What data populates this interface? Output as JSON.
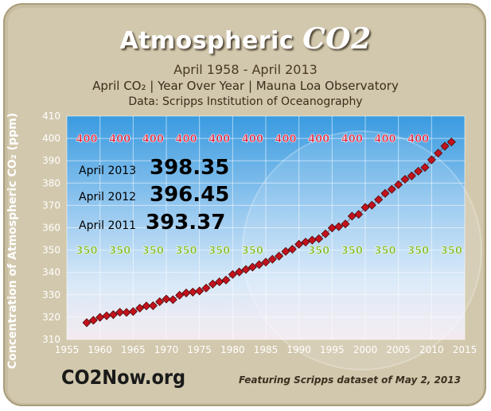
{
  "title": {
    "main": "Atmospheric",
    "co2": "CO2"
  },
  "subtitle": "April 1958 - April 2013",
  "line3": "April CO₂  |  Year Over Year  |  Mauna Loa Observatory",
  "line4": "Data:  Scripps Institution of Oceanography",
  "ylabel": "Concentration of  Atmospheric CO₂  (ppm)",
  "logo": "CO2Now.org",
  "featuring": "Featuring Scripps dataset of May 2, 2013",
  "stats": [
    {
      "label": "April 2013",
      "value": "398.35"
    },
    {
      "label": "April 2012",
      "value": "396.45"
    },
    {
      "label": "April 2011",
      "value": "393.37"
    }
  ],
  "chart_data": {
    "type": "scatter",
    "title": "Atmospheric CO2",
    "xlabel": "",
    "ylabel": "Concentration of  Atmospheric CO2  (ppm)",
    "xlim": [
      1955,
      2015
    ],
    "ylim": [
      310,
      410
    ],
    "xticks": [
      1955,
      1960,
      1965,
      1970,
      1975,
      1980,
      1985,
      1990,
      1995,
      2000,
      2005,
      2010,
      2015
    ],
    "yticks": [
      310,
      320,
      330,
      340,
      350,
      360,
      370,
      380,
      390,
      400,
      410
    ],
    "grid": true,
    "reference_lines": [
      {
        "label": "400",
        "y": 400,
        "color": "#e0203a"
      },
      {
        "label": "350",
        "y": 350,
        "color": "#7ab81e"
      }
    ],
    "series": [
      {
        "color": "#c4121c",
        "x": [
          1958,
          1959,
          1960,
          1961,
          1962,
          1963,
          1964,
          1965,
          1966,
          1967,
          1968,
          1969,
          1970,
          1971,
          1972,
          1973,
          1974,
          1975,
          1976,
          1977,
          1978,
          1979,
          1980,
          1981,
          1982,
          1983,
          1984,
          1985,
          1986,
          1987,
          1988,
          1989,
          1990,
          1991,
          1992,
          1993,
          1994,
          1995,
          1996,
          1997,
          1998,
          1999,
          2000,
          2001,
          2002,
          2003,
          2004,
          2005,
          2006,
          2007,
          2008,
          2009,
          2010,
          2011,
          2012,
          2013
        ],
        "y": [
          317.5,
          318.6,
          319.9,
          320.6,
          321.1,
          322.2,
          322.1,
          322.5,
          324.0,
          325.0,
          325.1,
          326.9,
          328.1,
          327.8,
          329.8,
          330.8,
          331.2,
          331.7,
          333.0,
          334.8,
          335.8,
          336.6,
          339.1,
          340.2,
          341.3,
          342.4,
          343.5,
          344.6,
          345.9,
          347.3,
          349.4,
          350.4,
          352.6,
          353.6,
          354.5,
          355.1,
          357.3,
          359.9,
          360.5,
          361.7,
          365.2,
          366.0,
          369.1,
          370.1,
          372.6,
          375.4,
          377.2,
          379.3,
          381.7,
          383.2,
          385.3,
          387.0,
          390.4,
          393.4,
          396.5,
          398.4
        ]
      }
    ]
  }
}
